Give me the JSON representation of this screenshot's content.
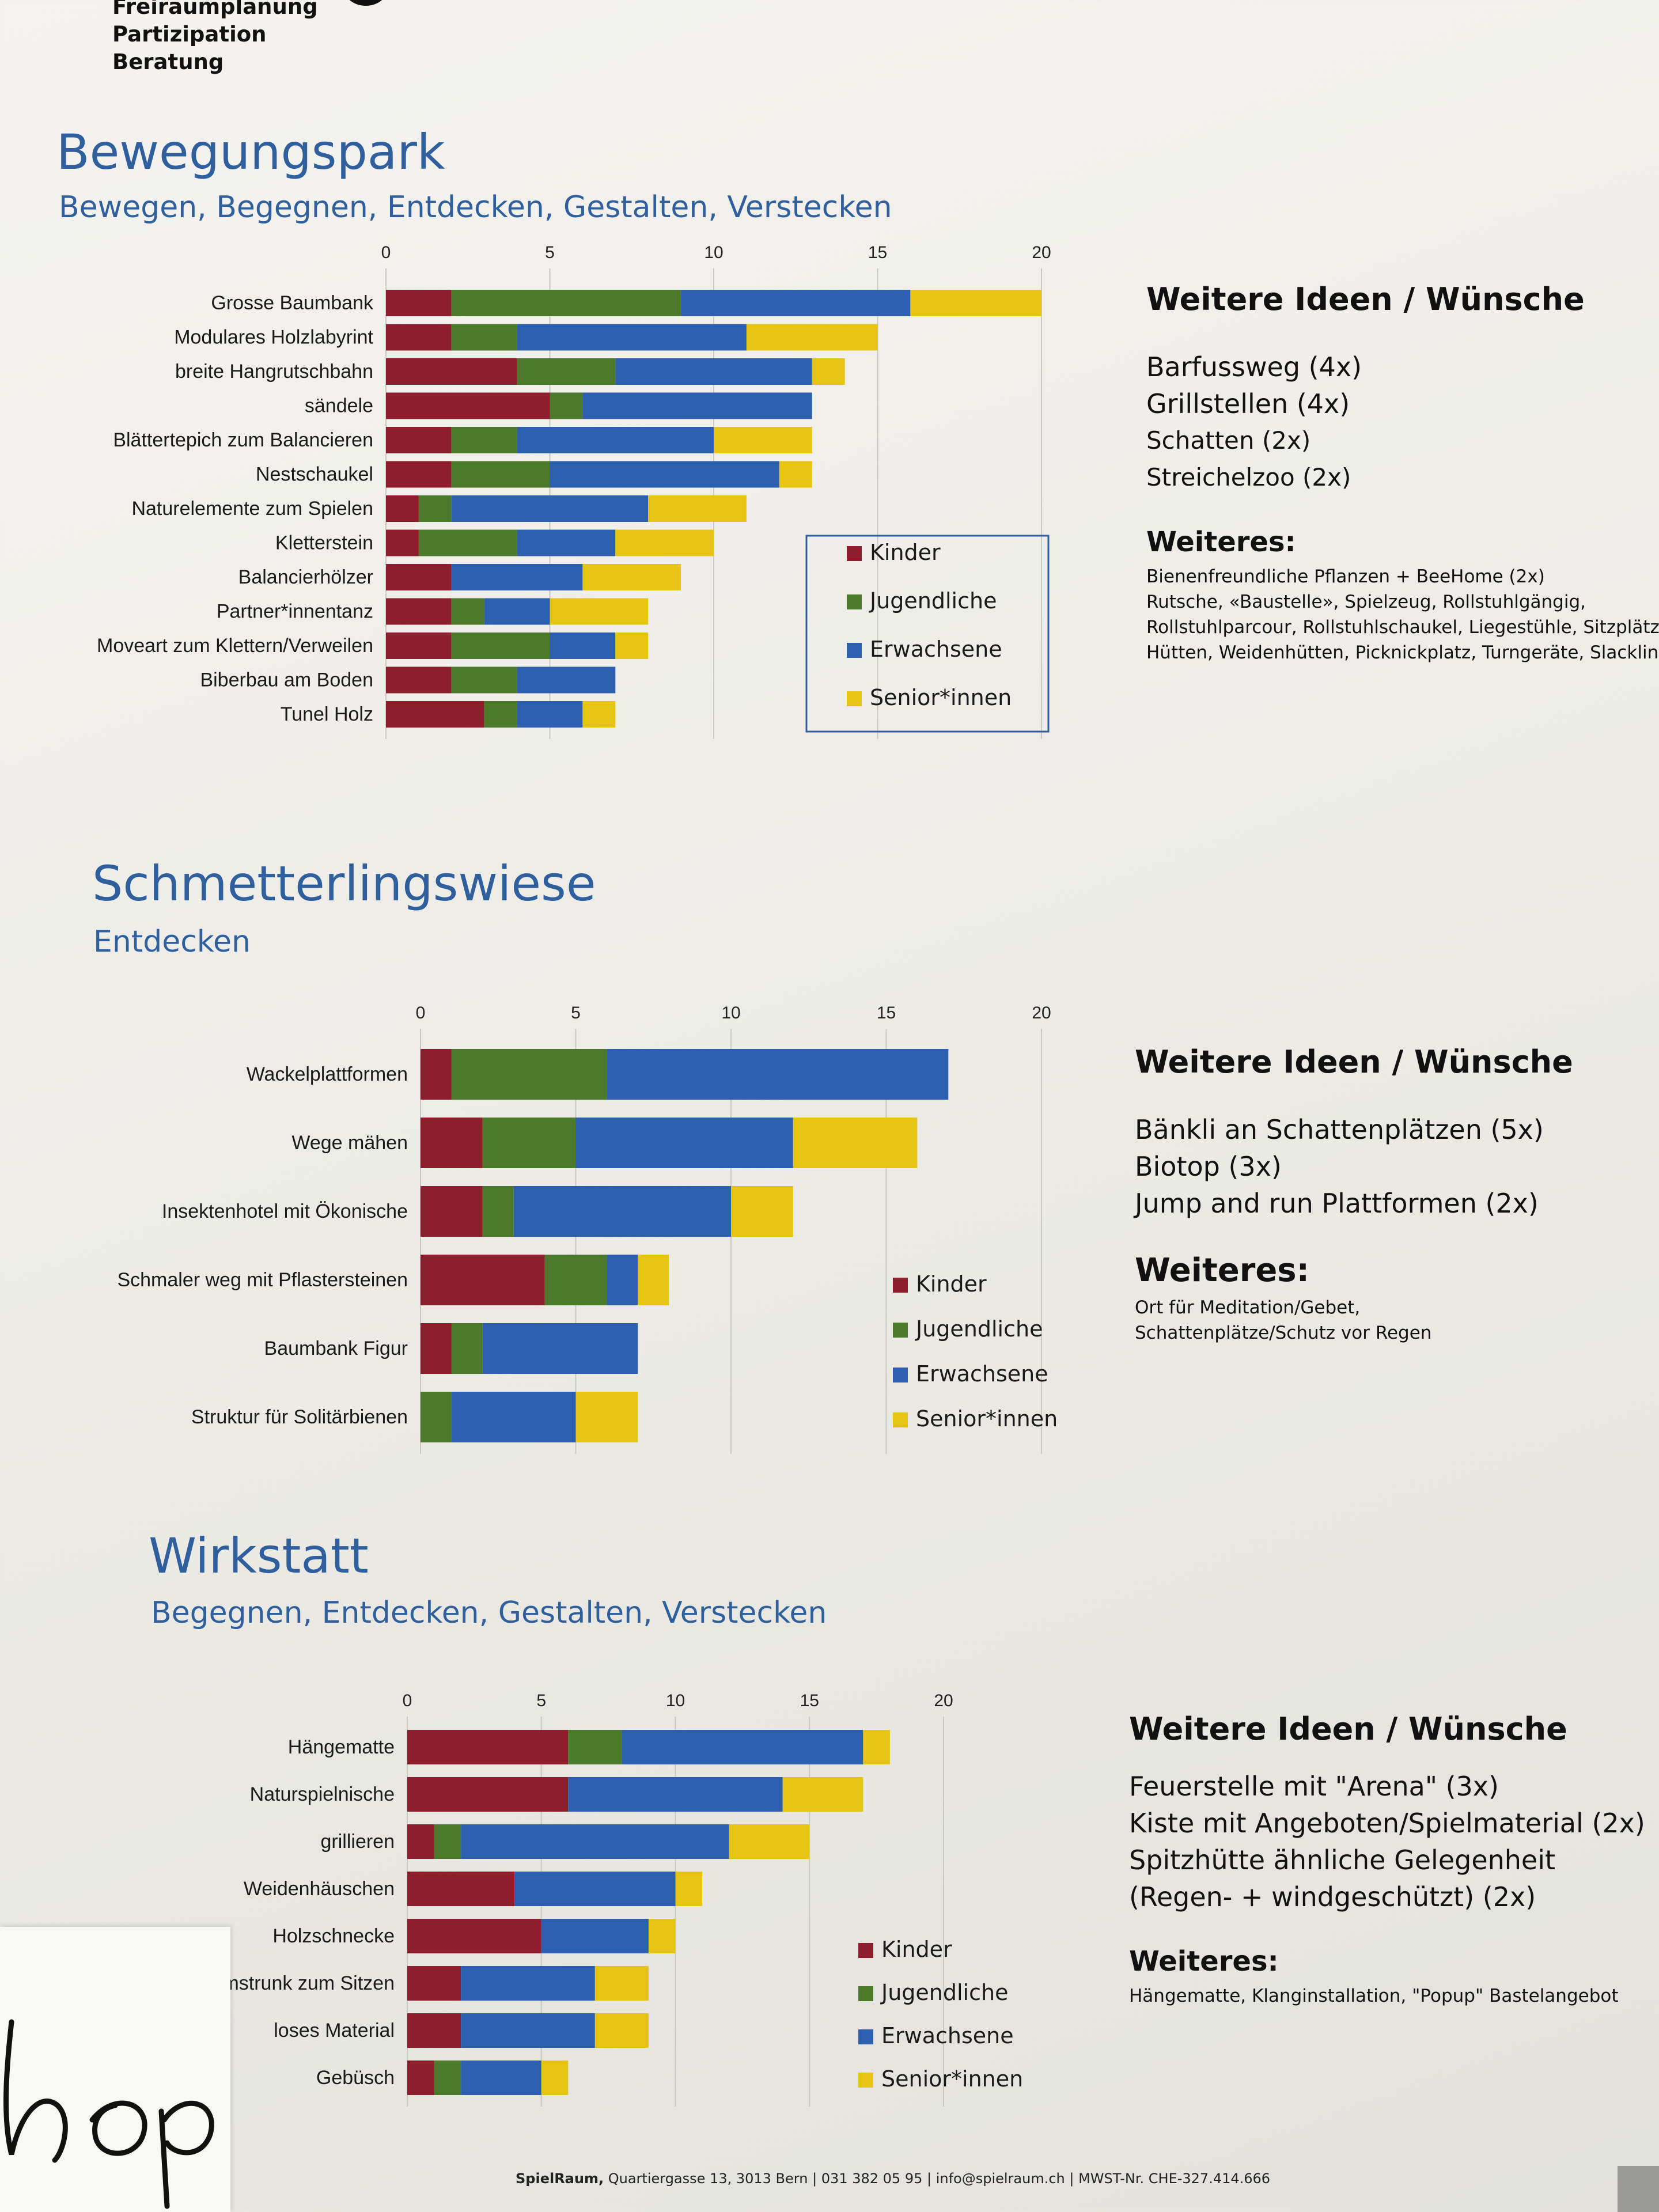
{
  "header": {
    "lines": [
      "Freiraumplanung",
      "Partizipation",
      "Beratung"
    ]
  },
  "colors": {
    "Kinder": "#8e1e2b",
    "Jugendliche": "#4c7a2a",
    "Erwachsene": "#2c5fad",
    "Senior*innen": "#e6c412"
  },
  "sections": [
    {
      "id": "bewegungspark",
      "title": "Bewegungspark",
      "subtitle": "Bewegen, Begegnen, Entdecken, Gestalten, Verstecken",
      "ideas": {
        "heading": "Weitere Ideen / Wünsche",
        "items": [
          "Barfussweg (4x)",
          "Grillstellen (4x)",
          "Schatten (2x)",
          "Streichelzoo (2x)"
        ],
        "weiteres_heading": "Weiteres:",
        "weiteres_lines": [
          "Bienenfreundliche Pflanzen + BeeHome (2x)",
          "Rutsche, «Baustelle», Spielzeug, Rollstuhlgängig,",
          "Rollstuhlparcour, Rollstuhlschaukel, Liegestühle, Sitzplätze",
          "Hütten, Weidenhütten, Picknickplatz, Turngeräte, Slackline"
        ]
      }
    },
    {
      "id": "schmetterlingswiese",
      "title": "Schmetterlingswiese",
      "subtitle": "Entdecken",
      "ideas": {
        "heading": "Weitere Ideen / Wünsche",
        "items": [
          "Bänkli an Schattenplätzen (5x)",
          "Biotop (3x)",
          "Jump and run Plattformen (2x)"
        ],
        "weiteres_heading": "Weiteres:",
        "weiteres_lines": [
          "Ort für Meditation/Gebet,",
          "Schattenplätze/Schutz vor Regen"
        ]
      }
    },
    {
      "id": "wirkstatt",
      "title": "Wirkstatt",
      "subtitle": "Begegnen, Entdecken, Gestalten, Verstecken",
      "ideas": {
        "heading": "Weitere Ideen / Wünsche",
        "items": [
          "Feuerstelle mit \"Arena\" (3x)",
          "Kiste mit Angeboten/Spielmaterial (2x)",
          "Spitzhütte ähnliche Gelegenheit",
          "(Regen- + windgeschützt) (2x)"
        ],
        "weiteres_heading": "Weiteres:",
        "weiteres_lines": [
          "Hängematte, Klanginstallation, \"Popup\" Bastelangebot"
        ]
      }
    }
  ],
  "footer": {
    "org": "SpielRaum,",
    "text": "Quartiergasse 13, 3013 Bern | 031 382 05 95 | info@spielraum.ch | MWST-Nr. CHE-327.414.666"
  },
  "chart_data": [
    {
      "type": "bar",
      "orientation": "horizontal",
      "stacked": true,
      "xlim": [
        0,
        20
      ],
      "ticks": [
        0,
        5,
        10,
        15,
        20
      ],
      "legend_position": "inside-right",
      "categories": [
        "Grosse Baumbank",
        "Modulares Holzlabyrint",
        "breite Hangrutschbahn",
        "sändele",
        "Blättertepich zum Balancieren",
        "Nestschaukel",
        "Naturelemente zum Spielen",
        "Kletterstein",
        "Balancierhölzer",
        "Partner*innentanz",
        "Moveart zum Klettern/Verweilen",
        "Biberbau am Boden",
        "Tunel Holz"
      ],
      "series": [
        {
          "name": "Kinder",
          "values": [
            2,
            2,
            4,
            5,
            2,
            2,
            1,
            1,
            2,
            2,
            2,
            2,
            3
          ]
        },
        {
          "name": "Jugendliche",
          "values": [
            7,
            2,
            3,
            1,
            2,
            3,
            1,
            3,
            0,
            1,
            3,
            2,
            1
          ]
        },
        {
          "name": "Erwachsene",
          "values": [
            7,
            7,
            6,
            7,
            6,
            7,
            6,
            3,
            4,
            2,
            2,
            3,
            2
          ]
        },
        {
          "name": "Senior*innen",
          "values": [
            4,
            4,
            1,
            0,
            3,
            1,
            3,
            3,
            3,
            3,
            1,
            0,
            1
          ]
        }
      ]
    },
    {
      "type": "bar",
      "orientation": "horizontal",
      "stacked": true,
      "xlim": [
        0,
        20
      ],
      "ticks": [
        0,
        5,
        10,
        15,
        20
      ],
      "legend_position": "inside-right",
      "categories": [
        "Wackelplattformen",
        "Wege mähen",
        "Insektenhotel mit Ökonische",
        "Schmaler weg mit Pflastersteinen",
        "Baumbank Figur",
        "Struktur für Solitärbienen"
      ],
      "series": [
        {
          "name": "Kinder",
          "values": [
            1,
            2,
            2,
            4,
            1,
            0
          ]
        },
        {
          "name": "Jugendliche",
          "values": [
            5,
            3,
            1,
            2,
            1,
            1
          ]
        },
        {
          "name": "Erwachsene",
          "values": [
            11,
            7,
            7,
            1,
            5,
            4
          ]
        },
        {
          "name": "Senior*innen",
          "values": [
            0,
            4,
            2,
            1,
            0,
            2
          ]
        }
      ]
    },
    {
      "type": "bar",
      "orientation": "horizontal",
      "stacked": true,
      "xlim": [
        0,
        20
      ],
      "ticks": [
        0,
        5,
        10,
        15,
        20
      ],
      "legend_position": "inside-right",
      "categories": [
        "Hängematte",
        "Naturspielnische",
        "grillieren",
        "Weidenhäuschen",
        "Holzschnecke",
        "Umstrunk zum Sitzen",
        "loses Material",
        "Gebüsch"
      ],
      "series": [
        {
          "name": "Kinder",
          "values": [
            6,
            6,
            1,
            4,
            5,
            2,
            2,
            1
          ]
        },
        {
          "name": "Jugendliche",
          "values": [
            2,
            0,
            1,
            0,
            0,
            0,
            0,
            1
          ]
        },
        {
          "name": "Erwachsene",
          "values": [
            9,
            8,
            10,
            6,
            4,
            5,
            5,
            3
          ]
        },
        {
          "name": "Senior*innen",
          "values": [
            1,
            3,
            3,
            1,
            1,
            2,
            2,
            1
          ]
        }
      ]
    }
  ]
}
